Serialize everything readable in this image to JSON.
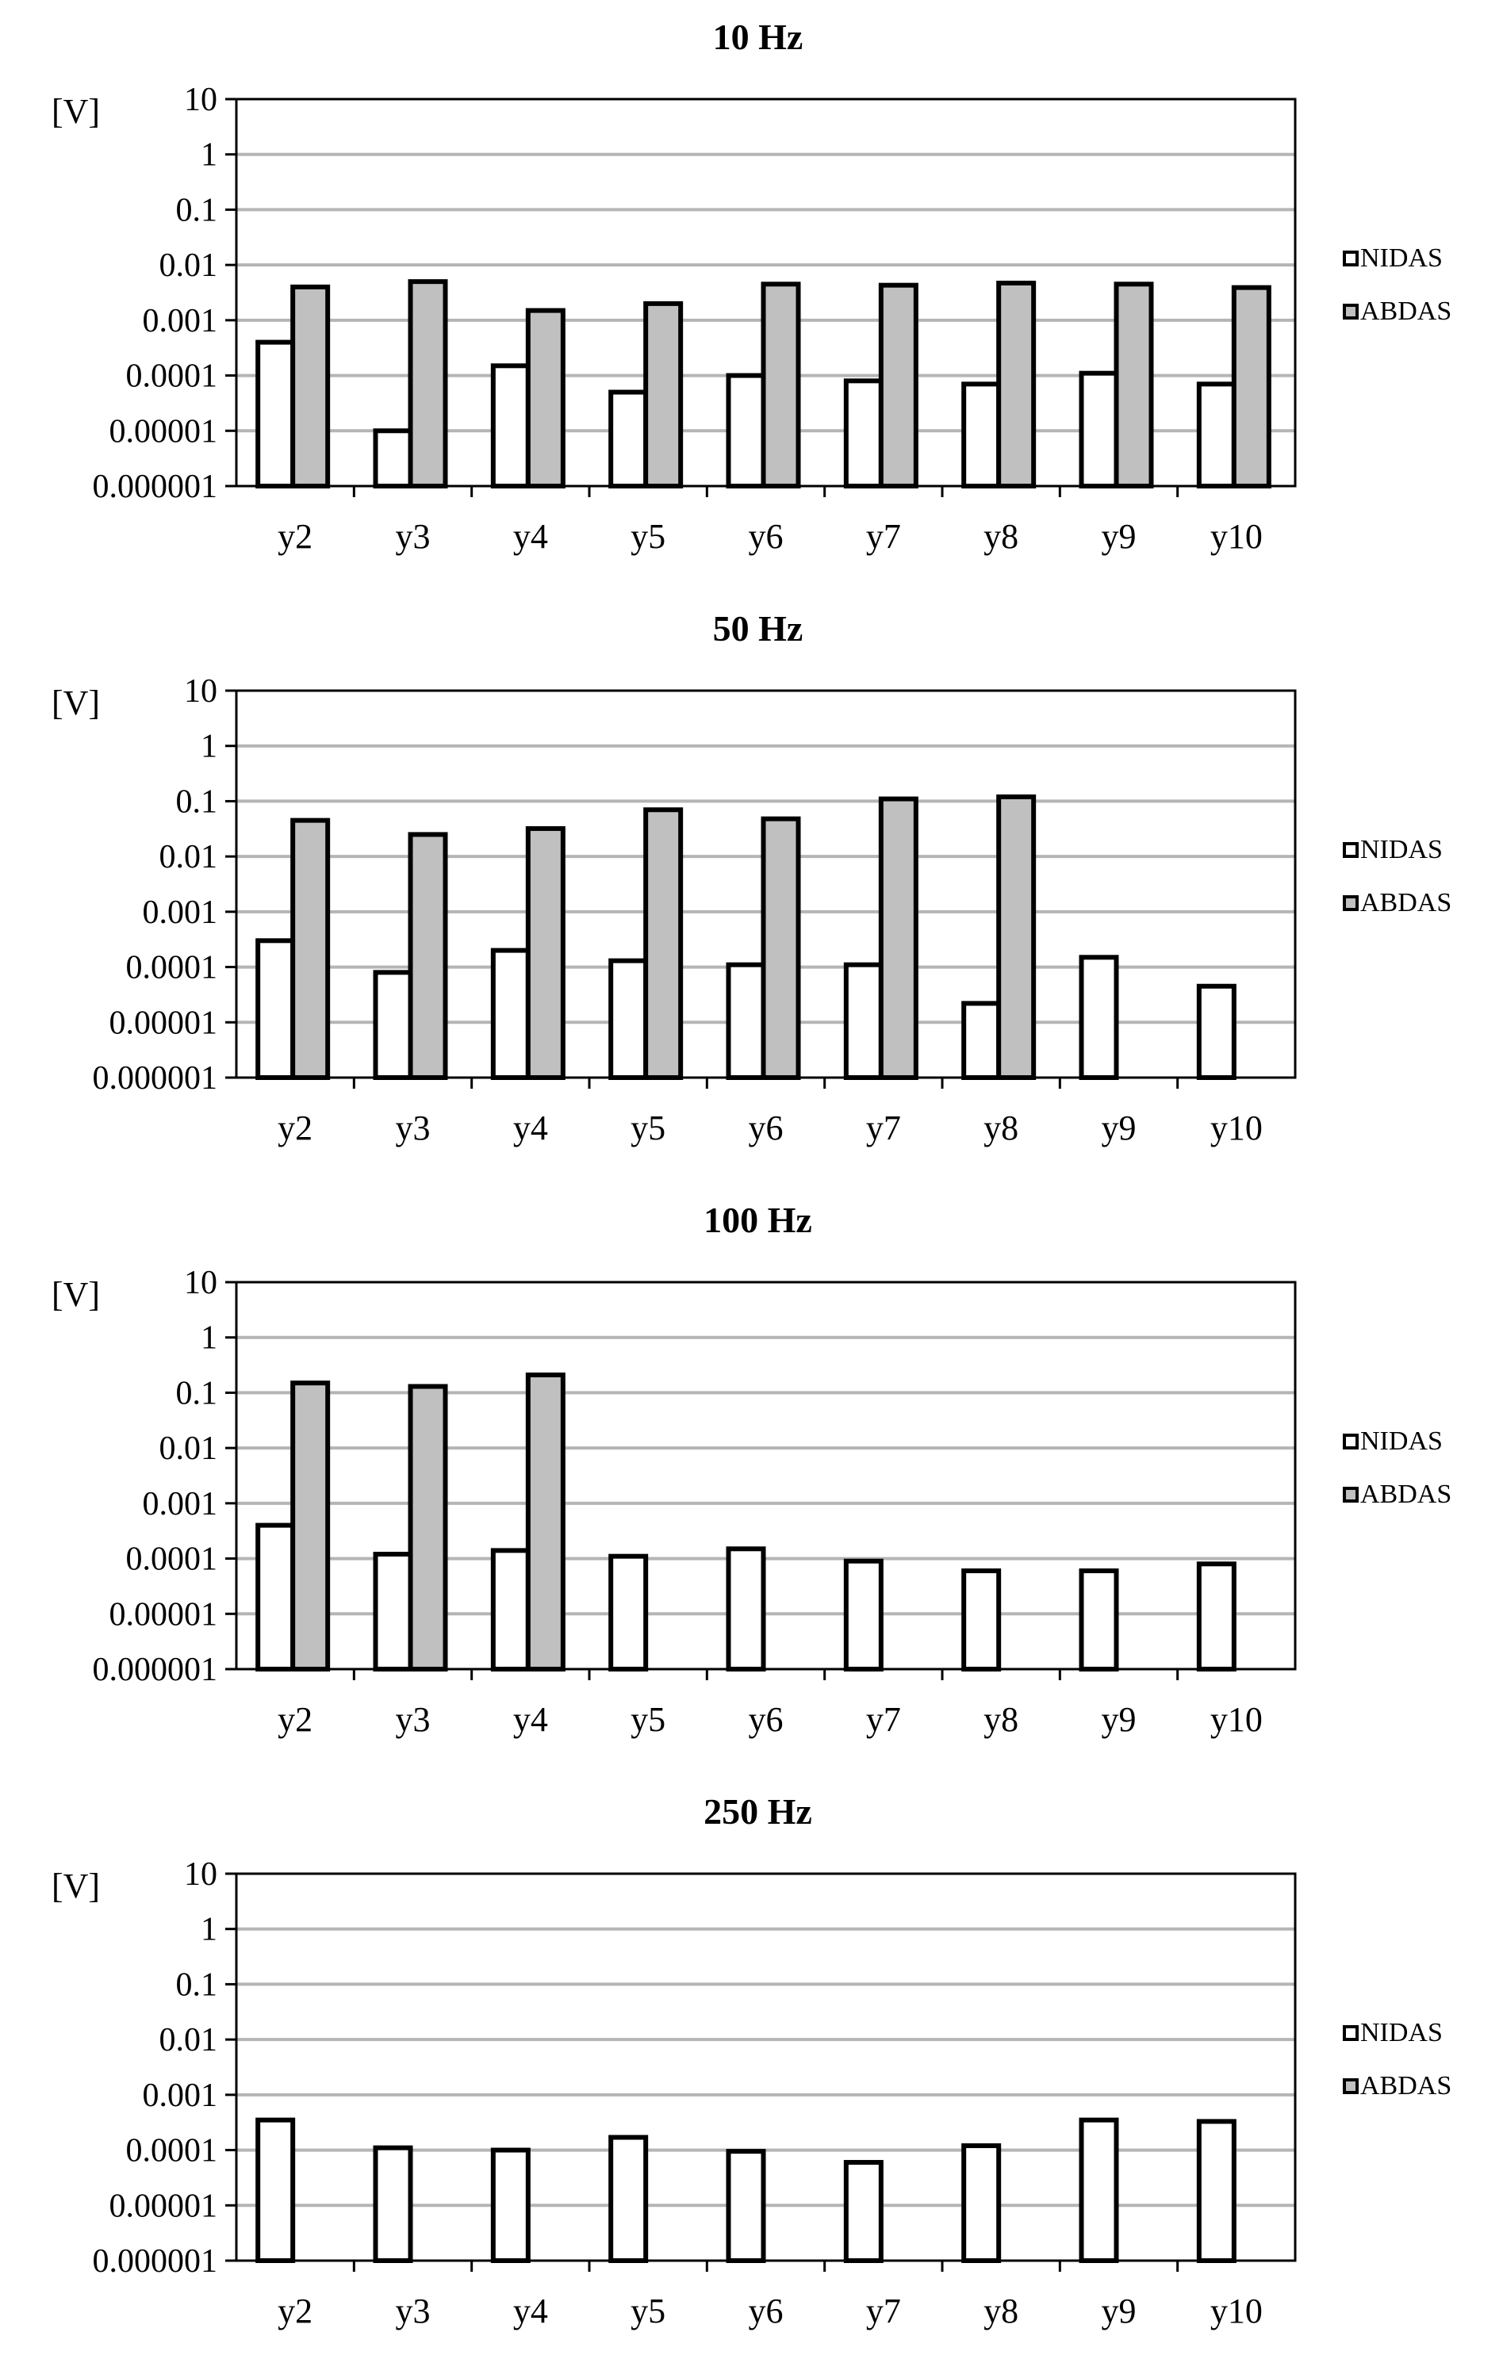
{
  "chart_data": [
    {
      "type": "bar",
      "title": "10 Hz",
      "ylabel": "[V]",
      "yscale": "log",
      "ylim": [
        1e-06,
        10
      ],
      "yticks": [
        "10",
        "1",
        "0.1",
        "0.01",
        "0.001",
        "0.0001",
        "0.00001",
        "0.000001"
      ],
      "categories": [
        "y2",
        "y3",
        "y4",
        "y5",
        "y6",
        "y7",
        "y8",
        "y9",
        "y10"
      ],
      "grid": true,
      "legend_position": "right",
      "series": [
        {
          "name": "NIDAS",
          "color": "#ffffff",
          "values": [
            0.0004,
            1e-05,
            0.00015,
            5e-05,
            0.0001,
            8e-05,
            7e-05,
            0.00011,
            7e-05
          ]
        },
        {
          "name": "ABDAS",
          "color": "#c0c0c0",
          "values": [
            0.004,
            0.005,
            0.0015,
            0.002,
            0.0045,
            0.0043,
            0.0047,
            0.0045,
            0.0039
          ]
        }
      ]
    },
    {
      "type": "bar",
      "title": "50 Hz",
      "ylabel": "[V]",
      "yscale": "log",
      "ylim": [
        1e-06,
        10
      ],
      "yticks": [
        "10",
        "1",
        "0.1",
        "0.01",
        "0.001",
        "0.0001",
        "0.00001",
        "0.000001"
      ],
      "categories": [
        "y2",
        "y3",
        "y4",
        "y5",
        "y6",
        "y7",
        "y8",
        "y9",
        "y10"
      ],
      "grid": true,
      "legend_position": "right",
      "series": [
        {
          "name": "NIDAS",
          "color": "#ffffff",
          "values": [
            0.0003,
            8e-05,
            0.0002,
            0.00013,
            0.00011,
            0.00011,
            2.2e-05,
            0.00015,
            4.5e-05
          ]
        },
        {
          "name": "ABDAS",
          "color": "#c0c0c0",
          "values": [
            0.045,
            0.025,
            0.032,
            0.07,
            0.048,
            0.11,
            0.12,
            null,
            null
          ]
        }
      ]
    },
    {
      "type": "bar",
      "title": "100 Hz",
      "ylabel": "[V]",
      "yscale": "log",
      "ylim": [
        1e-06,
        10
      ],
      "yticks": [
        "10",
        "1",
        "0.1",
        "0.01",
        "0.001",
        "0.0001",
        "0.00001",
        "0.000001"
      ],
      "categories": [
        "y2",
        "y3",
        "y4",
        "y5",
        "y6",
        "y7",
        "y8",
        "y9",
        "y10"
      ],
      "grid": true,
      "legend_position": "right",
      "series": [
        {
          "name": "NIDAS",
          "color": "#ffffff",
          "values": [
            0.0004,
            0.00012,
            0.00014,
            0.00011,
            0.00015,
            9e-05,
            6e-05,
            6e-05,
            8e-05
          ]
        },
        {
          "name": "ABDAS",
          "color": "#c0c0c0",
          "values": [
            0.15,
            0.13,
            0.21,
            null,
            null,
            null,
            null,
            null,
            null
          ]
        }
      ]
    },
    {
      "type": "bar",
      "title": "250 Hz",
      "ylabel": "[V]",
      "yscale": "log",
      "ylim": [
        1e-06,
        10
      ],
      "yticks": [
        "10",
        "1",
        "0.1",
        "0.01",
        "0.001",
        "0.0001",
        "0.00001",
        "0.000001"
      ],
      "categories": [
        "y2",
        "y3",
        "y4",
        "y5",
        "y6",
        "y7",
        "y8",
        "y9",
        "y10"
      ],
      "grid": true,
      "legend_position": "right",
      "series": [
        {
          "name": "NIDAS",
          "color": "#ffffff",
          "values": [
            0.00035,
            0.00011,
            0.0001,
            0.00017,
            9.5e-05,
            6e-05,
            0.00012,
            0.00035,
            0.00033
          ]
        },
        {
          "name": "ABDAS",
          "color": "#c0c0c0",
          "values": [
            null,
            null,
            null,
            null,
            null,
            null,
            null,
            null,
            null
          ]
        }
      ]
    }
  ]
}
